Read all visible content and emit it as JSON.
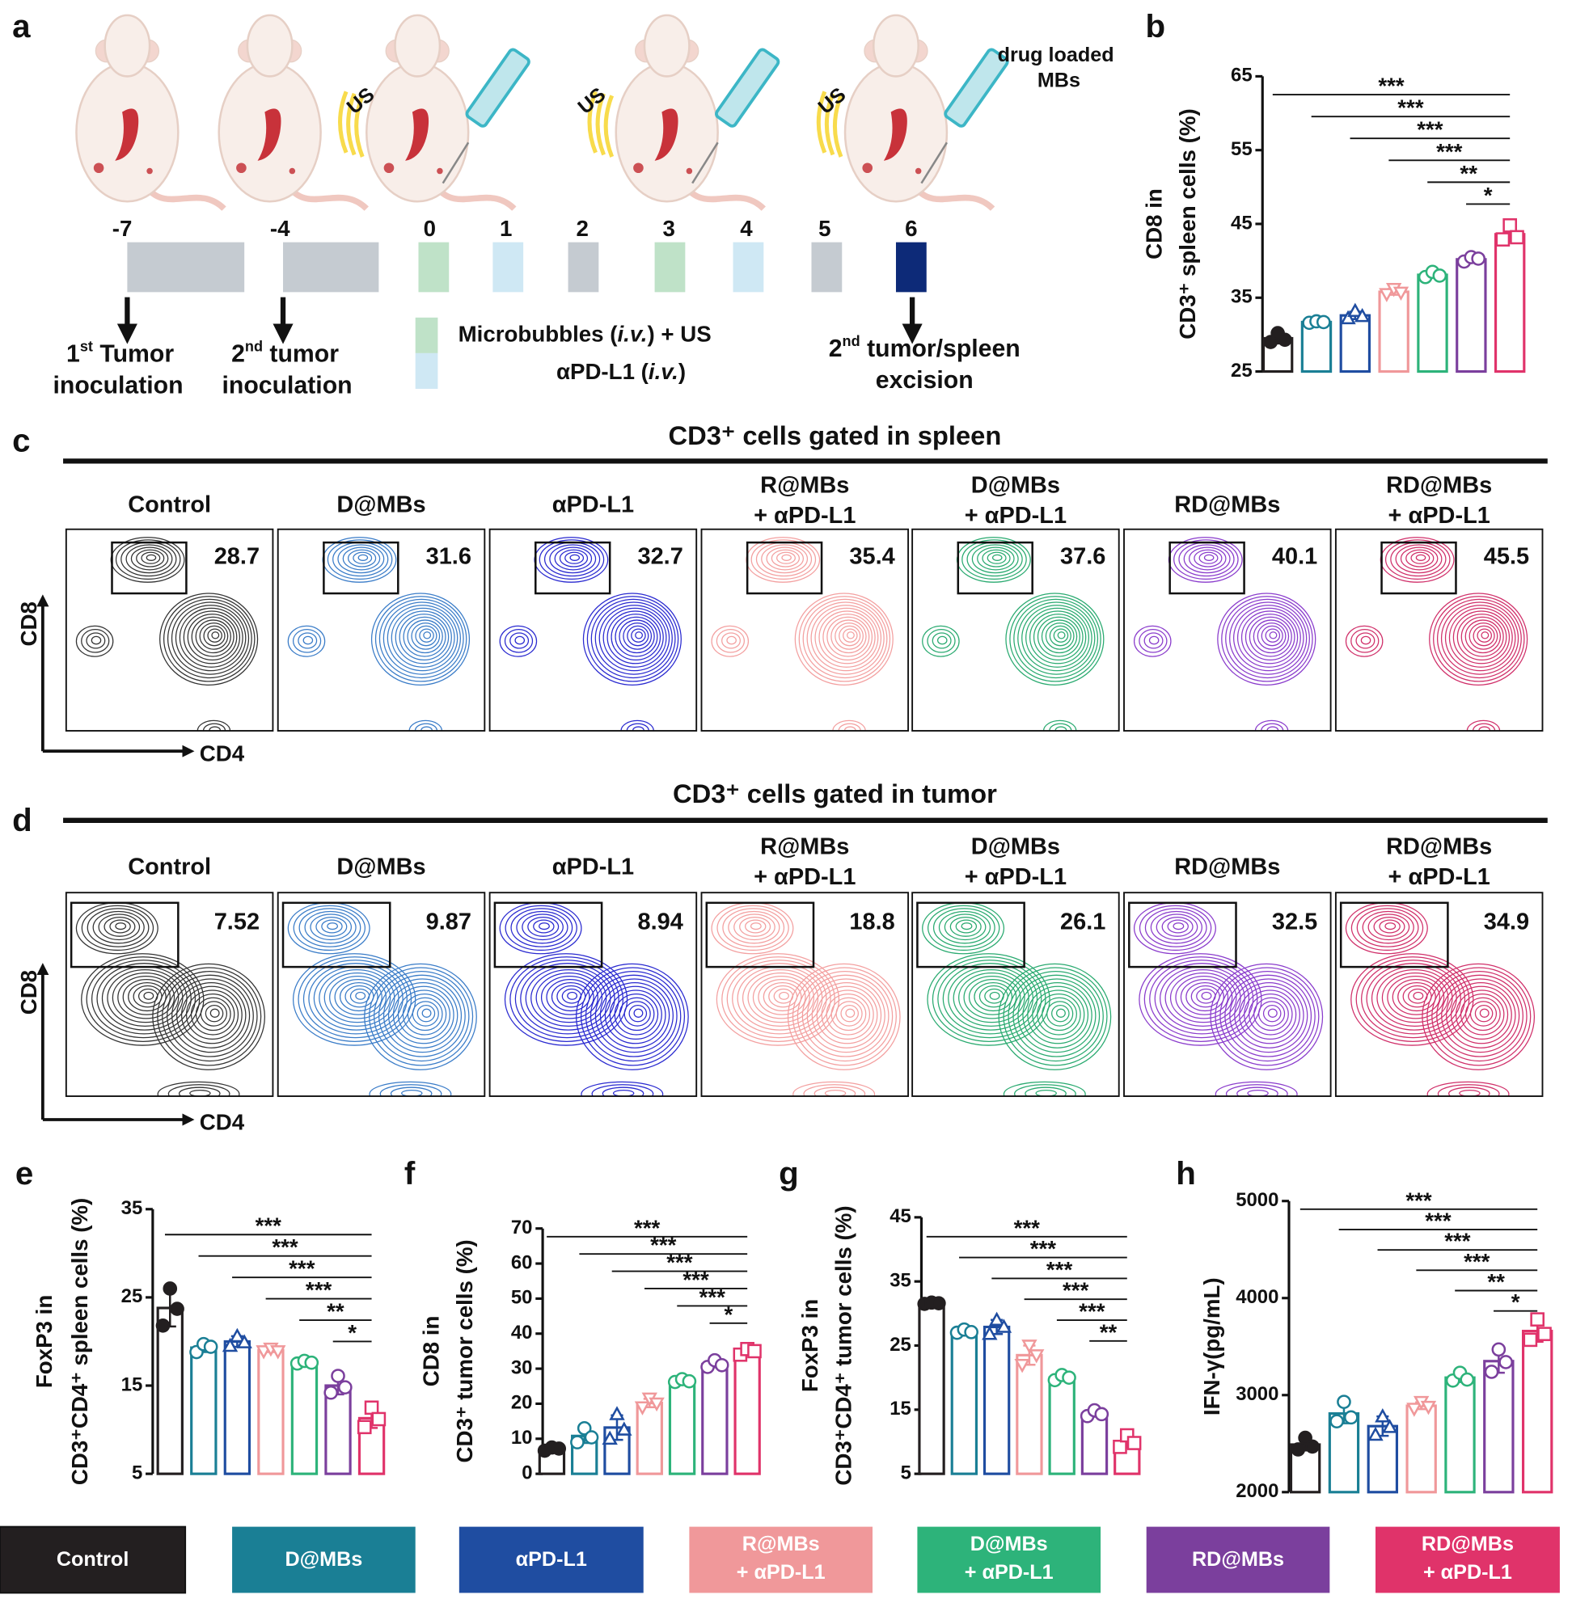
{
  "panel_labels": [
    "a",
    "b",
    "c",
    "d",
    "e",
    "f",
    "g",
    "h"
  ],
  "schedule": {
    "days": [
      -7,
      -4,
      0,
      1,
      2,
      3,
      4,
      5,
      6
    ],
    "us_label": "US",
    "drug_label": [
      "drug loaded",
      "MBs"
    ],
    "first_tumor": [
      "1",
      "st",
      " Tumor",
      "inoculation"
    ],
    "second_tumor": [
      "2",
      "nd",
      " tumor",
      "inoculation"
    ],
    "legend_mb": [
      "Microbubbles (",
      "i.v.",
      ") + US"
    ],
    "legend_pd": [
      "αPD-L1 (",
      "i.v.",
      ")"
    ],
    "excision": [
      "2",
      "nd",
      " tumor/spleen",
      "excision"
    ]
  },
  "groups": {
    "names": [
      [
        "Control"
      ],
      [
        "D@MBs"
      ],
      [
        "αPD-L1"
      ],
      [
        "R@MBs",
        "+ αPD-L1"
      ],
      [
        "D@MBs",
        "+ αPD-L1"
      ],
      [
        "RD@MBs"
      ],
      [
        "RD@MBs",
        "+ αPD-L1"
      ]
    ],
    "colors": [
      "#231f20",
      "#1a7f95",
      "#1f4da1",
      "#f0989a",
      "#2db37a",
      "#7b3f9d",
      "#e0336a"
    ],
    "flow_colors": [
      "#333333",
      "#3a7cc8",
      "#2a2ad0",
      "#f3a0a0",
      "#2aaa70",
      "#8a3ccc",
      "#d0306a"
    ]
  },
  "flow": [
    {
      "title": "CD3⁺ cells gated in spleen",
      "x_label": "CD4",
      "y_label": "CD8",
      "percentages": [
        28.7,
        31.6,
        32.7,
        35.4,
        37.6,
        40.1,
        45.5
      ]
    },
    {
      "title": "CD3⁺ cells gated in tumor",
      "x_label": "CD4",
      "y_label": "CD8",
      "percentages": [
        7.52,
        9.87,
        8.94,
        18.8,
        26.1,
        32.5,
        34.9
      ]
    }
  ],
  "chart_data": [
    {
      "type": "bar",
      "y_label": [
        "CD8 in",
        "CD3⁺ spleen cells (%)"
      ],
      "ylim": [
        25,
        65
      ],
      "yticks": [
        25,
        35,
        45,
        55,
        65
      ],
      "values": [
        29.5,
        31.7,
        32.6,
        35.8,
        38.1,
        40.2,
        43.6
      ],
      "errors": [
        0.7,
        0.2,
        0.5,
        0.4,
        0.4,
        0.3,
        1.0
      ],
      "points": [
        [
          29,
          30.2,
          29.3
        ],
        [
          31.6,
          31.8,
          31.7
        ],
        [
          32.2,
          33.2,
          32.5
        ],
        [
          35.5,
          36.2,
          35.7
        ],
        [
          37.8,
          38.5,
          38.0
        ],
        [
          39.9,
          40.5,
          40.3
        ],
        [
          42.9,
          44.8,
          43.2
        ]
      ],
      "significance": [
        "***",
        "***",
        "***",
        "***",
        "**",
        "*"
      ]
    },
    {
      "type": "bar",
      "y_label": [
        "FoxP3 in",
        "CD3⁺CD4⁺ spleen cells (%)"
      ],
      "ylim": [
        5,
        35
      ],
      "yticks": [
        5,
        15,
        25,
        35
      ],
      "values": [
        23.8,
        19.3,
        20.0,
        19.0,
        17.6,
        15.0,
        11.3
      ],
      "errors": [
        2.1,
        0.5,
        0.6,
        0.2,
        0.2,
        1.0,
        1.1
      ],
      "points": [
        [
          21.8,
          26,
          23.7
        ],
        [
          18.8,
          19.7,
          19.4
        ],
        [
          19.5,
          20.6,
          19.9
        ],
        [
          18.9,
          19.2,
          18.9
        ],
        [
          17.5,
          17.8,
          17.6
        ],
        [
          14.2,
          16.1,
          14.8
        ],
        [
          10.3,
          12.5,
          11.2
        ]
      ],
      "significance": [
        "***",
        "***",
        "***",
        "***",
        "**",
        "*"
      ]
    },
    {
      "type": "bar",
      "y_label": [
        "CD8 in",
        "CD3⁺ tumor cells (%)"
      ],
      "ylim": [
        0,
        70
      ],
      "yticks": [
        0,
        10,
        20,
        30,
        40,
        50,
        60,
        70
      ],
      "values": [
        7.1,
        10.8,
        13.2,
        20.2,
        26.5,
        31.3,
        34.9
      ],
      "errors": [
        0.5,
        2,
        3.5,
        1.2,
        0.4,
        0.9,
        0.8
      ],
      "points": [
        [
          6.6,
          7.5,
          7.2
        ],
        [
          9,
          13,
          10.4
        ],
        [
          10,
          17,
          12.6
        ],
        [
          19,
          21.5,
          20.1
        ],
        [
          26.2,
          27,
          26.4
        ],
        [
          30.5,
          32.4,
          31
        ],
        [
          34,
          35.6,
          35
        ]
      ],
      "significance": [
        "***",
        "***",
        "***",
        "***",
        "***",
        "*"
      ]
    },
    {
      "type": "bar",
      "y_label": [
        "FoxP3 in",
        "CD3⁺CD4⁺ tumor cells (%)"
      ],
      "ylim": [
        5,
        45
      ],
      "yticks": [
        5,
        15,
        25,
        35,
        45
      ],
      "values": [
        31.6,
        27.2,
        27.9,
        23.5,
        20.0,
        14.4,
        10.0
      ],
      "errors": [
        0.1,
        0.3,
        1.1,
        1.5,
        0.4,
        0.5,
        0.9
      ],
      "points": [
        [
          31.5,
          31.7,
          31.6
        ],
        [
          27,
          27.5,
          27.1
        ],
        [
          26.8,
          29,
          27.9
        ],
        [
          22,
          25,
          23.5
        ],
        [
          19.6,
          20.4,
          20
        ],
        [
          14,
          14.9,
          14.3
        ],
        [
          9.2,
          11,
          9.8
        ]
      ],
      "significance": [
        "***",
        "***",
        "***",
        "***",
        "***",
        "**"
      ]
    },
    {
      "type": "bar",
      "y_label": [
        "IFN-γ(pg/mL)"
      ],
      "ylim": [
        2000,
        5000
      ],
      "yticks": [
        2000,
        3000,
        4000,
        5000
      ],
      "values": [
        2490,
        2810,
        2680,
        2890,
        3180,
        3350,
        3660
      ],
      "errors": [
        60,
        100,
        100,
        35,
        45,
        120,
        110
      ],
      "points": [
        [
          2440,
          2560,
          2470
        ],
        [
          2730,
          2930,
          2770
        ],
        [
          2590,
          2780,
          2670
        ],
        [
          2860,
          2930,
          2880
        ],
        [
          3150,
          3230,
          3160
        ],
        [
          3240,
          3470,
          3340
        ],
        [
          3570,
          3780,
          3630
        ]
      ],
      "significance": [
        "***",
        "***",
        "***",
        "***",
        "**",
        "*"
      ]
    }
  ]
}
